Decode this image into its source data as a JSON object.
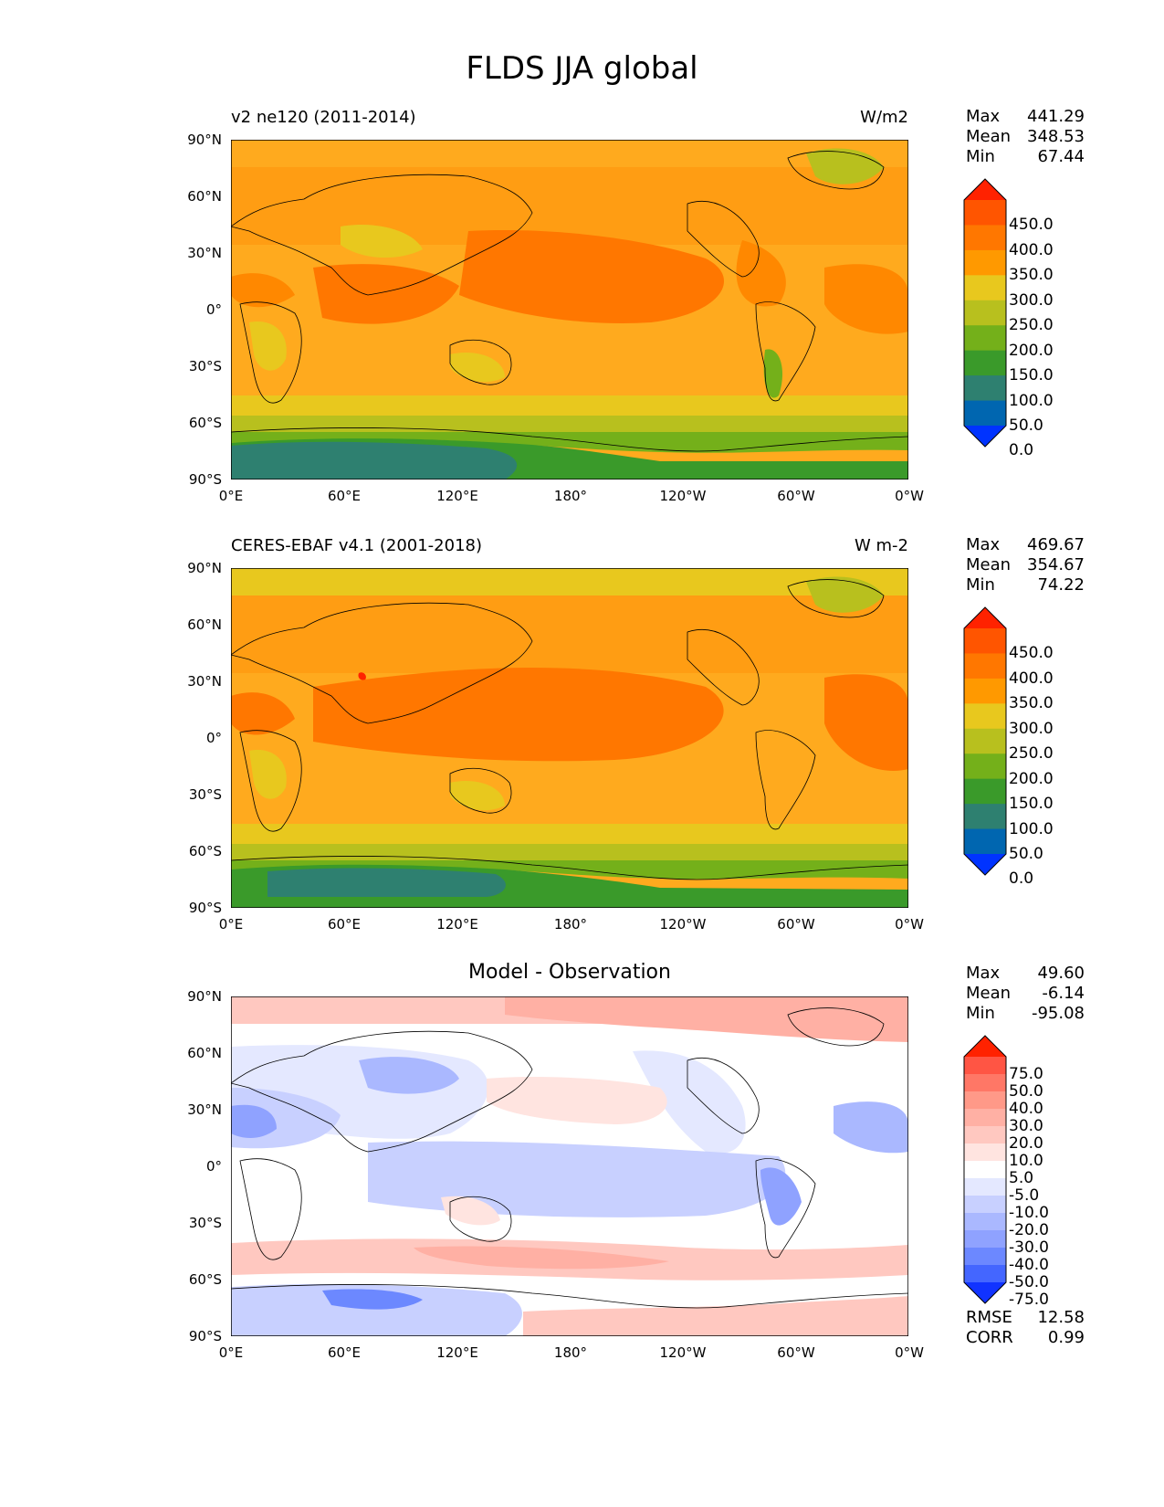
{
  "title": "FLDS JJA global",
  "x_ticks": [
    "0°E",
    "60°E",
    "120°E",
    "180°",
    "120°W",
    "60°W",
    "0°W"
  ],
  "y_ticks": [
    "90°N",
    "60°N",
    "30°N",
    "0°",
    "30°S",
    "60°S",
    "90°S"
  ],
  "panels": [
    {
      "left_label": "v2 ne120 (2011-2014)",
      "right_label": "W/m2",
      "center_label": "",
      "stats": [
        {
          "label": "Max",
          "value": "441.29"
        },
        {
          "label": "Mean",
          "value": "348.53"
        },
        {
          "label": "Min",
          "value": "67.44"
        }
      ],
      "colorbar_labels": [
        "450.0",
        "400.0",
        "350.0",
        "300.0",
        "250.0",
        "200.0",
        "150.0",
        "100.0",
        "50.0",
        "0.0"
      ],
      "colorbar_colors": [
        "#ff2200",
        "#ff5500",
        "#ff7700",
        "#ff9900",
        "#e8c81e",
        "#b8c01e",
        "#74b01a",
        "#3a9a2a",
        "#2e8070",
        "#0066b0",
        "#0033ff"
      ]
    },
    {
      "left_label": "CERES-EBAF v4.1 (2001-2018)",
      "right_label": "W m-2",
      "center_label": "",
      "stats": [
        {
          "label": "Max",
          "value": "469.67"
        },
        {
          "label": "Mean",
          "value": "354.67"
        },
        {
          "label": "Min",
          "value": "74.22"
        }
      ],
      "colorbar_labels": [
        "450.0",
        "400.0",
        "350.0",
        "300.0",
        "250.0",
        "200.0",
        "150.0",
        "100.0",
        "50.0",
        "0.0"
      ],
      "colorbar_colors": [
        "#ff2200",
        "#ff5500",
        "#ff7700",
        "#ff9900",
        "#e8c81e",
        "#b8c01e",
        "#74b01a",
        "#3a9a2a",
        "#2e8070",
        "#0066b0",
        "#0033ff"
      ]
    },
    {
      "left_label": "",
      "right_label": "",
      "center_label": "Model - Observation",
      "stats": [
        {
          "label": "Max",
          "value": "49.60"
        },
        {
          "label": "Mean",
          "value": "-6.14"
        },
        {
          "label": "Min",
          "value": "-95.08"
        }
      ],
      "colorbar_labels": [
        "75.0",
        "50.0",
        "40.0",
        "30.0",
        "20.0",
        "10.0",
        "5.0",
        "-5.0",
        "-10.0",
        "-20.0",
        "-30.0",
        "-40.0",
        "-50.0",
        "-75.0"
      ],
      "colorbar_colors": [
        "#ff2200",
        "#ff5544",
        "#ff7766",
        "#ff9988",
        "#ffb0a4",
        "#ffc8c0",
        "#ffe4e0",
        "#ffffff",
        "#e4e8ff",
        "#c8d0ff",
        "#aab8ff",
        "#8fa2ff",
        "#6c88ff",
        "#4466ff",
        "#1133ff"
      ],
      "extra_stats": [
        {
          "label": "RMSE",
          "value": "12.58"
        },
        {
          "label": "CORR",
          "value": "0.99"
        }
      ]
    }
  ]
}
